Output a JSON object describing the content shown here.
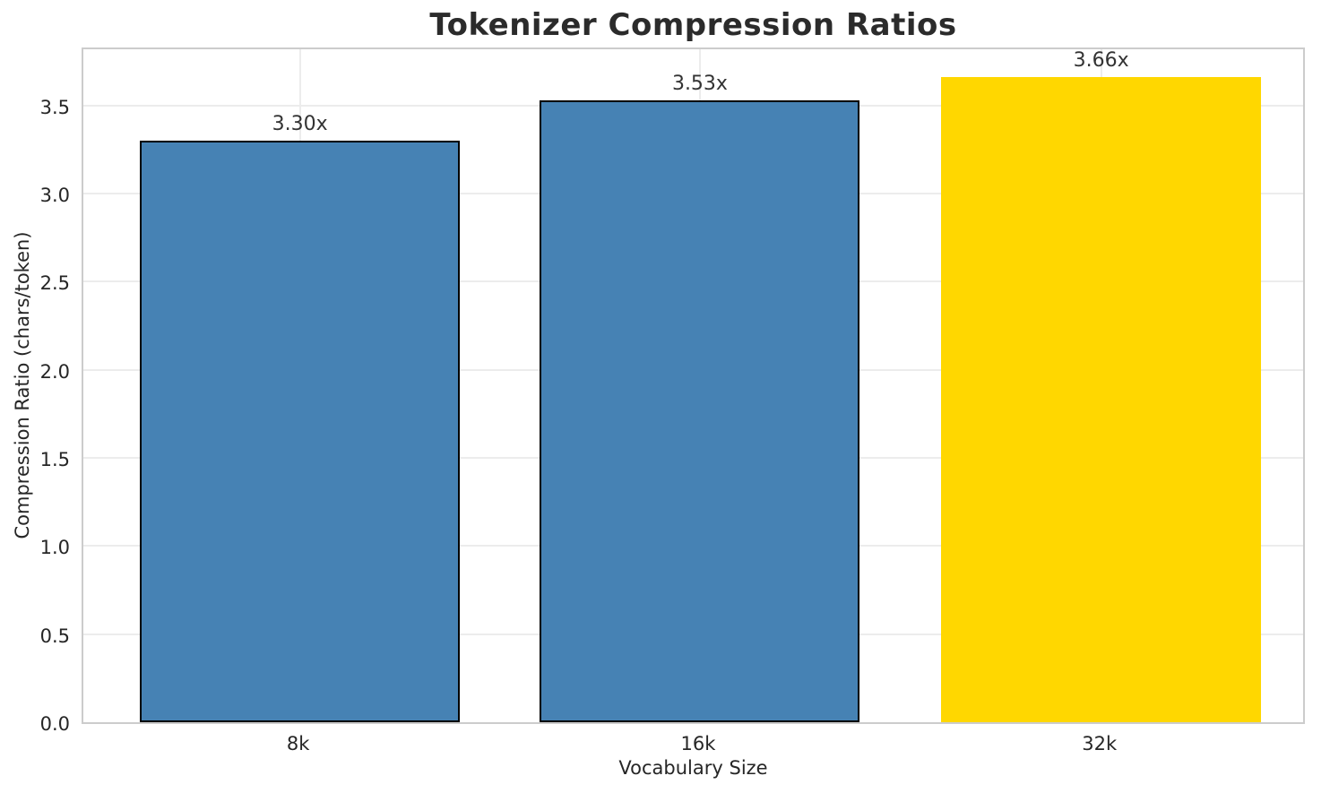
{
  "chart_data": {
    "type": "bar",
    "title": "Tokenizer Compression Ratios",
    "xlabel": "Vocabulary Size",
    "ylabel": "Compression Ratio (chars/token)",
    "categories": [
      "8k",
      "16k",
      "32k"
    ],
    "values": [
      3.3,
      3.53,
      3.66
    ],
    "bar_labels": [
      "3.30x",
      "3.53x",
      "3.66x"
    ],
    "bar_colors": [
      "#4682B4",
      "#4682B4",
      "#FFD700"
    ],
    "bar_edge_colors": [
      "#000000",
      "#000000",
      "none"
    ],
    "yticks": [
      "0.0",
      "0.5",
      "1.0",
      "1.5",
      "2.0",
      "2.5",
      "3.0",
      "3.5"
    ],
    "ytick_values": [
      0,
      0.5,
      1,
      1.5,
      2,
      2.5,
      3,
      3.5
    ],
    "ylim": [
      0,
      3.84
    ],
    "grid": true,
    "legend": "none"
  },
  "colors": {
    "background": "#FFFFFF",
    "grid": "#ECECEC",
    "spine": "#CCCCCC",
    "text": "#262626",
    "title": "#2B2B2B",
    "bar_blue": "#4682B4",
    "bar_gold": "#FFD700"
  }
}
